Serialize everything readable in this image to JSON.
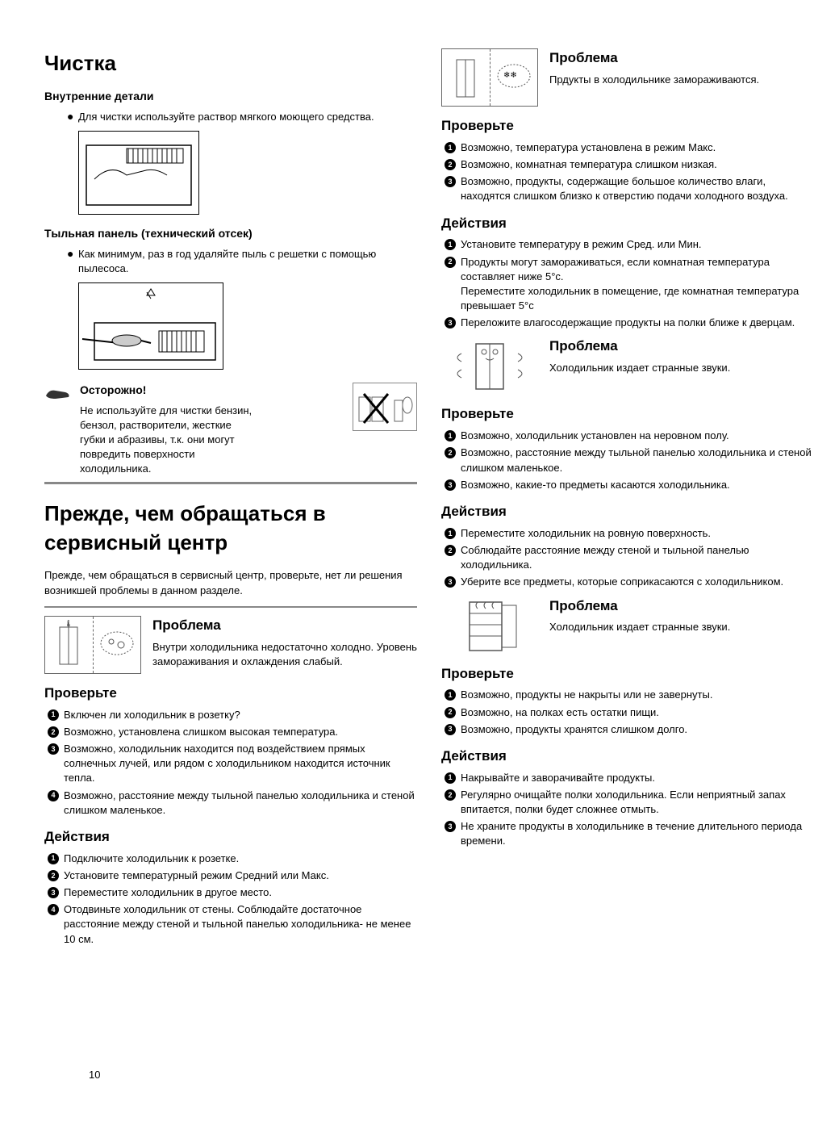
{
  "page_number": "10",
  "left": {
    "h1_cleaning": "Чистка",
    "sub_internal": "Внутренние детали",
    "internal_bullet": "Для чистки используйте раствор мягкого моющего средства.",
    "sub_back": "Тыльная панель (технический отсек)",
    "back_bullet": "Как минимум, раз в год удаляйте пыль с решетки с помощью пылесоса.",
    "caution_title": "Осторожно!",
    "caution_text": "Не используйте для чистки бензин, бензол, растворители, жесткие губки и абразивы, т.к. они могут повредить поверхности холодильника.",
    "h1_service": "Прежде, чем обращаться в сервисный центр",
    "service_intro": "Прежде, чем обращаться в сервисный центр, проверьте, нет ли решения возникшей проблемы в данном разделе.",
    "prob1_title": "Проблема",
    "prob1_text": "Внутри холодильника недостаточно холодно. Уровень замораживания и охлаждения слабый.",
    "check_title": "Проверьте",
    "check1": [
      "Включен ли холодильник в розетку?",
      "Возможно, установлена слишком высокая температура.",
      "Возможно, холодильник находится под воздействием прямых солнечных лучей, или рядом с холодильником находится источник тепла.",
      "Возможно, расстояние между тыльной панелью холодильника и стеной слишком маленькое."
    ],
    "action_title": "Действия",
    "action1": [
      "Подключите холодильник к розетке.",
      "Установите температурный режим Средний или Макс.",
      "Переместите холодильник в другое место.",
      "Отодвиньте холодильник от стены. Соблюдайте достаточное расстояние между стеной и тыльной панелью холодильника- не менее 10 см."
    ],
    "illus": {
      "w": 150,
      "h": 104
    },
    "illus2": {
      "w": 180,
      "h": 108
    }
  },
  "right": {
    "prob2_title": "Проблема",
    "prob2_text": "Прдукты в холодильнике замораживаются.",
    "check2_title": "Проверьте",
    "check2": [
      "Возможно, температура установлена в режим Макс.",
      "Возможно, комнатная температура слишком низкая.",
      "Возможно, продукты, содержащие большое количество влаги, находятся слишком близко к отверстию подачи холодного воздуха."
    ],
    "action2_title": "Действия",
    "action2": [
      "Установите температуру в режим Сред. или Мин.",
      "Продукты могут замораживаться, если комнатная температура составляет ниже 5°с.\nПереместите холодильник в помещение, где комнатная температура превышает 5°с",
      "Переложите влагосодержащие продукты на полки ближе к дверцам."
    ],
    "prob3_title": "Проблема",
    "prob3_text": "Холодильник издает странные звуки.",
    "check3_title": "Проверьте",
    "check3": [
      "Возможно, холодильник установлен на неровном полу.",
      "Возможно, расстояние между тыльной панелью холодильника и стеной слишком маленькое.",
      "Возможно, какие-то предметы касаются холодильника."
    ],
    "action3_title": "Действия",
    "action3": [
      "Переместите холодильник на ровную поверхность.",
      "Соблюдайте расстояние между стеной и тыльной панелью холодильника.",
      "Уберите все предметы, которые соприкасаются с холодильником."
    ],
    "prob4_title": "Проблема",
    "prob4_text": "Холодильник издает странные звуки.",
    "check4_title": "Проверьте",
    "check4": [
      "Возможно, продукты не накрыты или не завернуты.",
      "Возможно, на полках есть остатки пищи.",
      "Возможно, продукты хранятся слишком долго."
    ],
    "action4_title": "Действия",
    "action4": [
      "Накрывайте и заворачивайте продукты.",
      "Регулярно очищайте полки холодильника. Если неприятный запах впитается, полки будет сложнее отмыть.",
      "Не храните продукты в холодильнике в течение длительного периода времени."
    ]
  }
}
